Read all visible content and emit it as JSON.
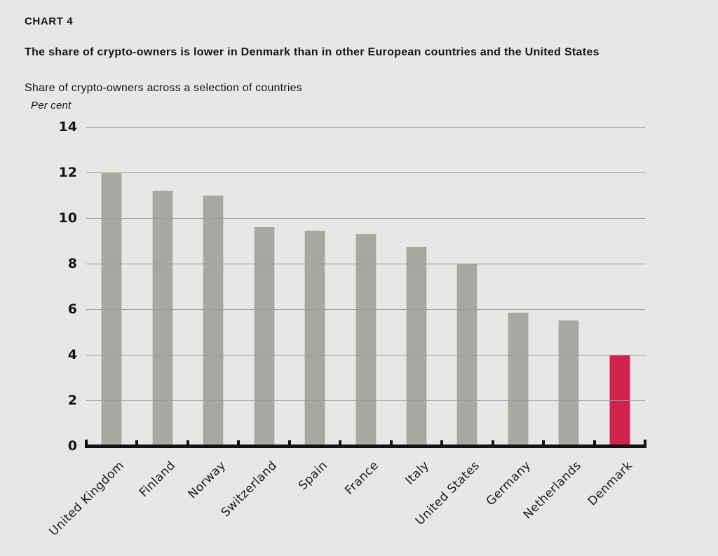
{
  "header": {
    "kicker": "CHART 4",
    "title": "The share of crypto-owners is lower in Denmark than in other European countries and the United States",
    "subtitle": "Share of crypto-owners across a selection of countries",
    "unit_label": "Per cent"
  },
  "chart_data": {
    "type": "bar",
    "title": "Share of crypto-owners across a selection of countries",
    "ylabel": "Per cent",
    "xlabel": "",
    "categories": [
      "United Kingdom",
      "Finland",
      "Norway",
      "Switzerland",
      "Spain",
      "France",
      "Italy",
      "United States",
      "Germany",
      "Netherlands",
      "Denmark"
    ],
    "values": [
      12.0,
      11.2,
      11.0,
      9.6,
      9.45,
      9.3,
      8.75,
      8.0,
      5.85,
      5.5,
      4.0
    ],
    "highlight_category": "Denmark",
    "ylim": [
      0,
      14
    ],
    "ytick_step": 2,
    "grid": true,
    "legend": "none",
    "colors": {
      "bar": "#a7a8a4",
      "highlight": "#cf234e",
      "background": "#e8e7e5",
      "gridline": "#9c9c9c",
      "axis": "#121212",
      "text": "#141414"
    }
  }
}
